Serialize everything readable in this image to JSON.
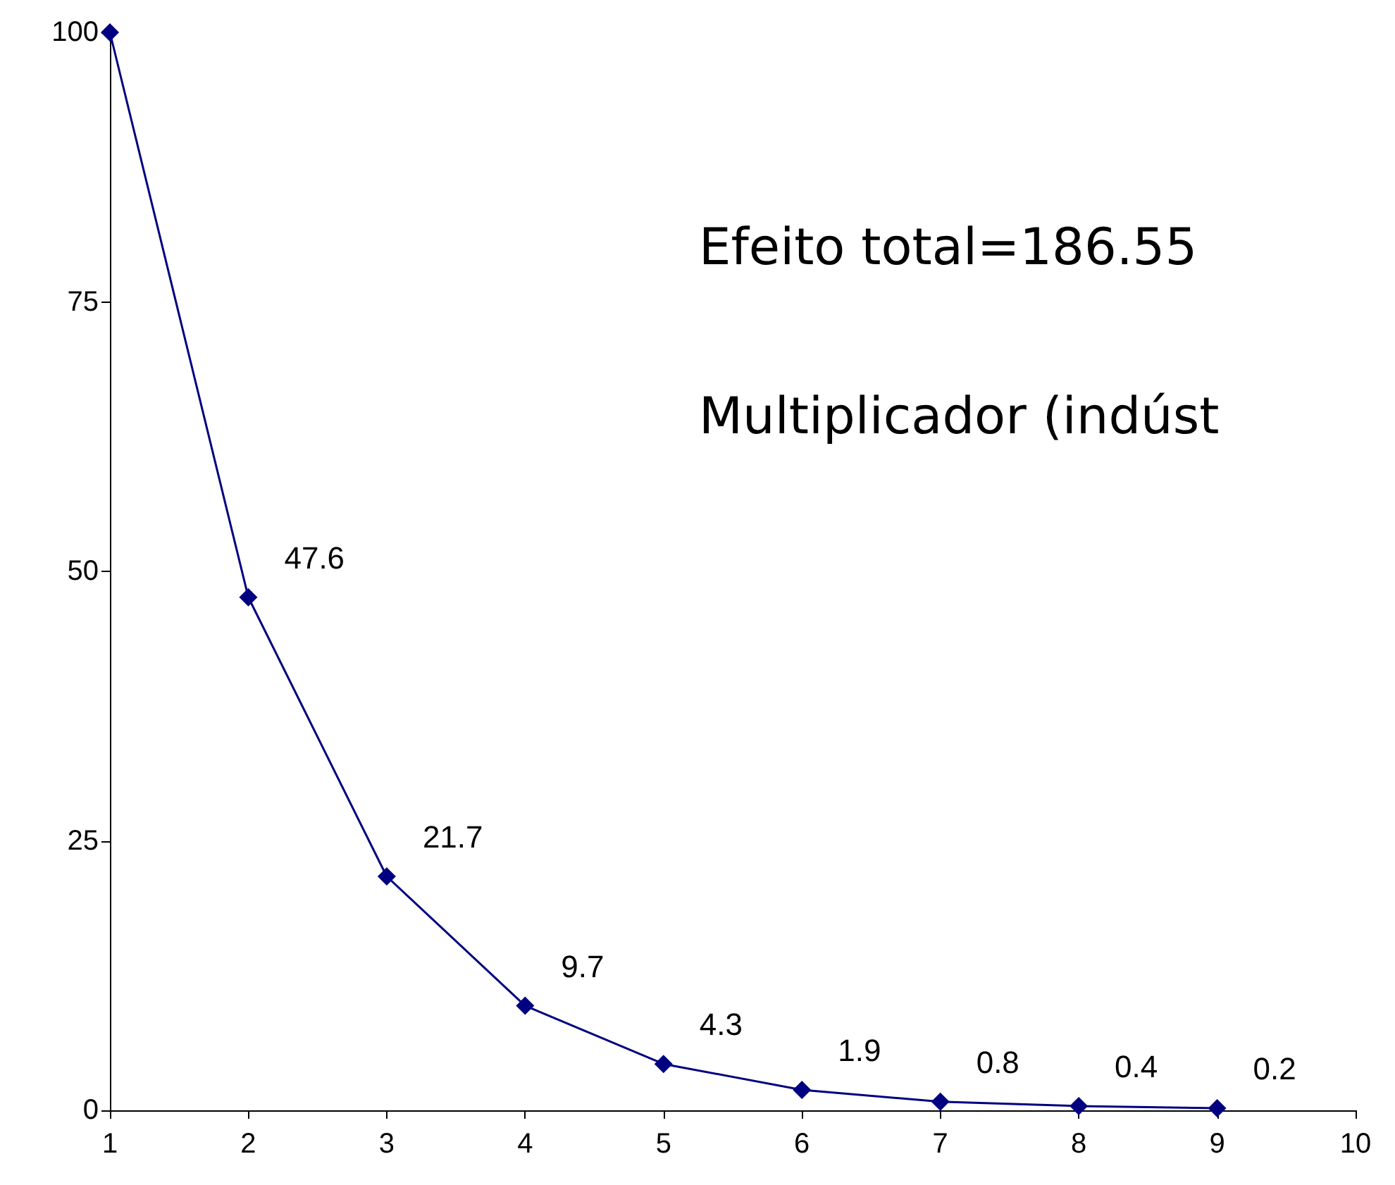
{
  "chart_data": {
    "type": "line",
    "x": [
      1,
      2,
      3,
      4,
      5,
      6,
      7,
      8,
      9
    ],
    "series": [
      {
        "color": "#000080",
        "values": [
          100,
          47.6,
          21.7,
          9.7,
          4.3,
          1.9,
          0.8,
          0.4,
          0.2
        ],
        "value_labels": [
          null,
          "47.6",
          "21.7",
          "9.7",
          "4.3",
          "1.9",
          "0.8",
          "0.4",
          "0.2"
        ]
      }
    ],
    "xlim": [
      1,
      10
    ],
    "xticks": [
      1,
      2,
      3,
      4,
      5,
      6,
      7,
      8,
      9,
      10
    ],
    "ylim": [
      0,
      100
    ],
    "yticks": [
      0,
      25,
      50,
      75,
      100
    ],
    "grid": false,
    "marker": "diamond",
    "line_style": "solid",
    "annotations": [
      "Efeito total=186.55",
      "Multiplicador (indúst"
    ]
  }
}
